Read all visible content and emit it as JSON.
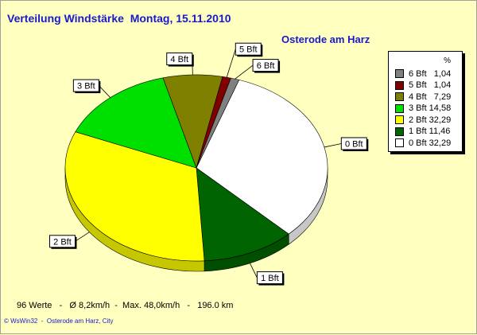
{
  "header": {
    "title": "Verteilung Windstärke  Montag, 15.11.2010",
    "location": "Osterode am Harz"
  },
  "legend": {
    "header": "%",
    "entries": [
      {
        "text": "6 Bft   1,04",
        "color": "#808080"
      },
      {
        "text": "5 Bft   1,04",
        "color": "#800000"
      },
      {
        "text": "4 Bft   7,29",
        "color": "#808000"
      },
      {
        "text": "3 Bft 14,58",
        "color": "#00e000"
      },
      {
        "text": "2 Bft 32,29",
        "color": "#ffff00"
      },
      {
        "text": "1 Bft 11,46",
        "color": "#006400"
      },
      {
        "text": "0 Bft 32,29",
        "color": "#ffffff"
      }
    ]
  },
  "chart_data": {
    "type": "pie",
    "labels": [
      "0 Bft",
      "1 Bft",
      "2 Bft",
      "3 Bft",
      "4 Bft",
      "5 Bft",
      "6 Bft"
    ],
    "values": [
      32.29,
      11.46,
      32.29,
      14.58,
      7.29,
      1.04,
      1.04
    ],
    "colors": [
      "#ffffff",
      "#006400",
      "#ffff00",
      "#00e000",
      "#808000",
      "#800000",
      "#808080"
    ],
    "legend_position": "right"
  },
  "footer": {
    "stats": "96 Werte   -   Ø 8,2km/h  -  Max. 48,0km/h   -   196.0 km",
    "credit": "© WsWin32  -  Osterode am Harz, City"
  }
}
